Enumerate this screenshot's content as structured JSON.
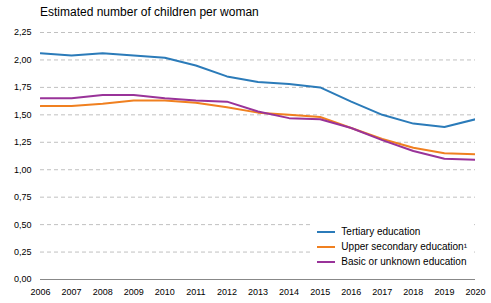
{
  "chart_data": {
    "type": "line",
    "title": "Estimated number of children per woman",
    "x": [
      2006,
      2007,
      2008,
      2009,
      2010,
      2011,
      2012,
      2013,
      2014,
      2015,
      2016,
      2017,
      2018,
      2019,
      2020
    ],
    "series": [
      {
        "name": "Tertiary education",
        "color": "#2B7BB9",
        "values": [
          2.06,
          2.04,
          2.06,
          2.04,
          2.02,
          1.95,
          1.85,
          1.8,
          1.78,
          1.75,
          1.62,
          1.5,
          1.42,
          1.39,
          1.46
        ]
      },
      {
        "name": "Upper secondary education¹",
        "color": "#F08020",
        "values": [
          1.58,
          1.58,
          1.6,
          1.63,
          1.63,
          1.61,
          1.57,
          1.52,
          1.5,
          1.48,
          1.38,
          1.28,
          1.2,
          1.15,
          1.14
        ]
      },
      {
        "name": "Basic or unknown education",
        "color": "#993399",
        "values": [
          1.65,
          1.65,
          1.68,
          1.68,
          1.65,
          1.63,
          1.62,
          1.53,
          1.47,
          1.46,
          1.38,
          1.27,
          1.17,
          1.1,
          1.09
        ]
      }
    ],
    "xlim": [
      2006,
      2020
    ],
    "xticks": [
      2006,
      2007,
      2008,
      2009,
      2010,
      2011,
      2012,
      2013,
      2014,
      2015,
      2016,
      2017,
      2018,
      2019,
      2020
    ],
    "ylim": [
      0.0,
      2.25
    ],
    "yticks": [
      {
        "value": 0.0,
        "label": "0,00"
      },
      {
        "value": 0.25,
        "label": "0,25"
      },
      {
        "value": 0.5,
        "label": "0,50"
      },
      {
        "value": 0.75,
        "label": "0,75"
      },
      {
        "value": 1.0,
        "label": "1,00"
      },
      {
        "value": 1.25,
        "label": "1,25"
      },
      {
        "value": 1.5,
        "label": "1,50"
      },
      {
        "value": 1.75,
        "label": "1,75"
      },
      {
        "value": 2.0,
        "label": "2,00"
      },
      {
        "value": 2.25,
        "label": "2,25"
      }
    ],
    "grid": true,
    "legend": "lower right"
  }
}
